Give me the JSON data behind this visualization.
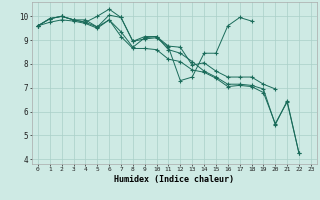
{
  "xlabel": "Humidex (Indice chaleur)",
  "background_color": "#ceeae4",
  "grid_color": "#aacfc8",
  "line_color": "#1a6b5a",
  "xlim": [
    -0.5,
    23.5
  ],
  "ylim": [
    3.8,
    10.6
  ],
  "yticks": [
    4,
    5,
    6,
    7,
    8,
    9,
    10
  ],
  "xticks": [
    0,
    1,
    2,
    3,
    4,
    5,
    6,
    7,
    8,
    9,
    10,
    11,
    12,
    13,
    14,
    15,
    16,
    17,
    18,
    19,
    20,
    21,
    22,
    23
  ],
  "series": [
    [
      9.6,
      9.9,
      10.0,
      9.85,
      9.85,
      9.55,
      10.05,
      9.95,
      8.95,
      9.15,
      9.15,
      8.75,
      8.7,
      7.95,
      8.05,
      7.7,
      7.45,
      7.45,
      7.45,
      7.15,
      6.95,
      null,
      null,
      null
    ],
    [
      9.6,
      9.9,
      10.0,
      9.85,
      9.75,
      10.0,
      10.3,
      9.95,
      8.95,
      9.05,
      9.1,
      8.7,
      7.3,
      7.45,
      8.45,
      8.45,
      9.6,
      9.95,
      9.8,
      null,
      null,
      null,
      null,
      null
    ],
    [
      9.6,
      9.9,
      10.0,
      9.85,
      9.75,
      9.55,
      9.85,
      9.35,
      8.7,
      9.1,
      9.15,
      8.6,
      8.45,
      8.1,
      7.7,
      7.45,
      7.15,
      7.15,
      7.1,
      6.95,
      5.45,
      6.45,
      4.25,
      null
    ],
    [
      9.6,
      9.75,
      9.85,
      9.8,
      9.7,
      9.5,
      9.85,
      9.15,
      8.65,
      8.65,
      8.6,
      8.2,
      8.1,
      7.75,
      7.65,
      7.4,
      7.05,
      7.1,
      7.05,
      6.8,
      5.5,
      6.4,
      4.25,
      null
    ]
  ]
}
